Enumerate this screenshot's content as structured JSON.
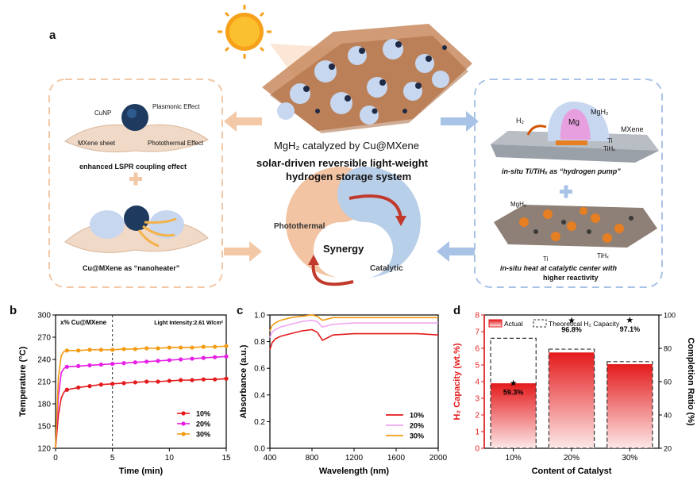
{
  "figure": {
    "panel_labels": {
      "a": "a",
      "b": "b",
      "c": "c",
      "d": "d"
    }
  },
  "panel_a": {
    "left_box": {
      "cunp": "CuNP",
      "plasmonic": "Plasmonic Effect",
      "mxene_sheet": "MXene sheet",
      "photothermal_effect": "Photothermal Effect",
      "lspr": "enhanced LSPR coupling effect",
      "nanoheater": "Cu@MXene as “nanoheater”"
    },
    "center": {
      "title": "MgH₂ catalyzed by Cu@MXene",
      "subtitle_line1": "solar-driven reversible light-weight",
      "subtitle_line2": "hydrogen storage system",
      "photothermal": "Photothermal",
      "synergy": "Synergy",
      "catalytic": "Catalytic"
    },
    "right_box": {
      "h2": "H₂",
      "mg": "Mg",
      "mgh2": "MgH₂",
      "mxene": "MXene",
      "ti": "Ti",
      "tihx": "TiHₓ",
      "pump": "in-situ Ti/TiHₓ as “hydrogen pump”",
      "mgh2_lower": "MgH₂",
      "ti_lower": "Ti",
      "tihx_lower": "TiHₓ",
      "heat_line1": "in-situ heat at catalytic center with",
      "heat_line2": "higher reactivity"
    },
    "colors": {
      "orange_box": "#f2c8a6",
      "blue_box": "#a9c3e6",
      "photothermal": "#f2c4a4",
      "catalytic": "#b8cfe9"
    }
  },
  "chart_data": [
    {
      "type": "line",
      "panel": "b",
      "annotation_left": "x% Cu@MXene",
      "annotation_right": "Light Intensity:2.61 W/cm²",
      "xlabel": "Time (min)",
      "ylabel": "Temperature (°C)",
      "xlim": [
        0,
        15
      ],
      "ylim": [
        120,
        300
      ],
      "xticks": [
        0,
        5,
        10,
        15
      ],
      "yticks": [
        120,
        150,
        180,
        210,
        240,
        270,
        300
      ],
      "dashed_vline_x": 5,
      "legend_position": "bottom-right",
      "series": [
        {
          "name": "10%",
          "color": "#e41a1c",
          "x": [
            0,
            0.25,
            0.5,
            0.75,
            1,
            2,
            3,
            4,
            5,
            6,
            7,
            8,
            9,
            10,
            11,
            12,
            13,
            14,
            15
          ],
          "y": [
            120,
            165,
            188,
            196,
            199,
            202,
            204,
            206,
            207,
            208,
            209,
            210,
            210,
            211,
            212,
            212,
            213,
            213,
            214
          ]
        },
        {
          "name": "20%",
          "color": "#e61ee6",
          "x": [
            0,
            0.25,
            0.5,
            0.75,
            1,
            2,
            3,
            4,
            5,
            6,
            7,
            8,
            9,
            10,
            11,
            12,
            13,
            14,
            15
          ],
          "y": [
            120,
            190,
            222,
            228,
            230,
            231,
            232,
            233,
            234,
            235,
            236,
            237,
            238,
            239,
            240,
            241,
            242,
            243,
            244
          ]
        },
        {
          "name": "30%",
          "color": "#f39c12",
          "x": [
            0,
            0.25,
            0.5,
            0.75,
            1,
            2,
            3,
            4,
            5,
            6,
            7,
            8,
            9,
            10,
            11,
            12,
            13,
            14,
            15
          ],
          "y": [
            120,
            215,
            245,
            251,
            252,
            252,
            253,
            253,
            253,
            254,
            254,
            255,
            255,
            256,
            256,
            256,
            257,
            257,
            258
          ]
        }
      ]
    },
    {
      "type": "line",
      "panel": "c",
      "xlabel": "Wavelength (nm)",
      "ylabel": "Absorbance (a.u.)",
      "xlim": [
        400,
        2000
      ],
      "ylim": [
        0,
        1.0
      ],
      "xticks": [
        400,
        800,
        1200,
        1600,
        2000
      ],
      "yticks": [
        0.0,
        0.2,
        0.4,
        0.6,
        0.8,
        1.0
      ],
      "legend_position": "bottom-right",
      "series": [
        {
          "name": "10%",
          "color": "#e41a1c",
          "x": [
            400,
            420,
            450,
            500,
            600,
            700,
            800,
            850,
            900,
            1000,
            1200,
            1400,
            1600,
            1800,
            2000
          ],
          "y": [
            0.74,
            0.79,
            0.82,
            0.84,
            0.86,
            0.88,
            0.89,
            0.87,
            0.81,
            0.85,
            0.86,
            0.86,
            0.86,
            0.86,
            0.85
          ]
        },
        {
          "name": "20%",
          "color": "#f0a6f0",
          "x": [
            400,
            420,
            450,
            500,
            600,
            700,
            800,
            850,
            900,
            1000,
            1200,
            1400,
            1600,
            1800,
            2000
          ],
          "y": [
            0.83,
            0.87,
            0.89,
            0.91,
            0.93,
            0.95,
            0.96,
            0.95,
            0.91,
            0.93,
            0.94,
            0.94,
            0.94,
            0.94,
            0.94
          ]
        },
        {
          "name": "30%",
          "color": "#f39c12",
          "x": [
            400,
            420,
            450,
            500,
            600,
            700,
            800,
            850,
            900,
            1000,
            1200,
            1400,
            1600,
            1800,
            2000
          ],
          "y": [
            0.88,
            0.92,
            0.94,
            0.96,
            0.98,
            0.99,
            1.0,
            0.99,
            0.96,
            0.98,
            0.98,
            0.98,
            0.98,
            0.98,
            0.98
          ]
        }
      ]
    },
    {
      "type": "bar",
      "panel": "d",
      "categories": [
        "10%",
        "20%",
        "30%"
      ],
      "xlabel": "Content of Catalyst",
      "ylabel_left": "H₂ Capacity (wt.%)",
      "ylabel_right": "Completion Ratio (%)",
      "ylim_left": [
        0,
        8
      ],
      "ylim_right": [
        20,
        100
      ],
      "yticks_left": [
        0,
        1,
        2,
        3,
        4,
        5,
        6,
        7,
        8
      ],
      "yticks_right": [
        20,
        40,
        60,
        80,
        100
      ],
      "legend_actual": "Actual",
      "legend_theoretical": "Theoretical H₂ Capacity",
      "actual": [
        3.9,
        5.75,
        5.05
      ],
      "theoretical": [
        6.6,
        5.95,
        5.2
      ],
      "completion_ratio": [
        59.3,
        96.8,
        97.1
      ],
      "completion_labels": [
        "59.3%",
        "96.8%",
        "97.1%"
      ],
      "colors": {
        "bar_top": "#e41a1c",
        "bar_bottom": "#fde8e8",
        "axis_left": "#e41a1c"
      }
    }
  ]
}
